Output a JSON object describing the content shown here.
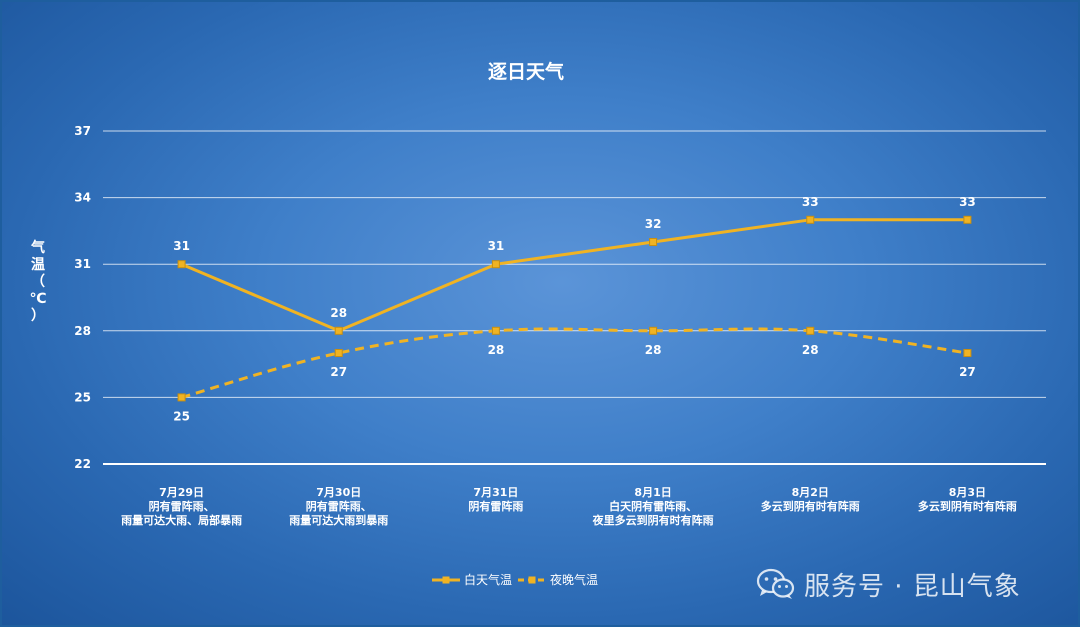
{
  "chart_data": {
    "type": "line",
    "title": "逐日天气",
    "ylabel": "气温（℃）",
    "xlabel": "",
    "ylim": [
      22,
      37
    ],
    "yticks": [
      22,
      25,
      28,
      31,
      34,
      37
    ],
    "grid": true,
    "legend_position": "bottom",
    "categories": [
      [
        "7月29日",
        "阴有雷阵雨、",
        "雨量可达大雨、局部暴雨"
      ],
      [
        "7月30日",
        "阴有雷阵雨、",
        "雨量可达大雨到暴雨"
      ],
      [
        "7月31日",
        "阴有雷阵雨"
      ],
      [
        "8月1日",
        "白天阴有雷阵雨、",
        "夜里多云到阴有时有阵雨"
      ],
      [
        "8月2日",
        "多云到阴有时有阵雨"
      ],
      [
        "8月3日",
        "多云到阴有时有阵雨"
      ]
    ],
    "series": [
      {
        "name": "白天气温",
        "values": [
          31,
          28,
          31,
          32,
          33,
          33
        ],
        "color": "#f0b323",
        "dashed": false
      },
      {
        "name": "夜晚气温",
        "values": [
          25,
          27,
          28,
          28,
          28,
          27
        ],
        "color": "#f0b323",
        "dashed": true
      }
    ]
  },
  "watermark": {
    "icon": "wechat-icon",
    "text": "服务号 · 昆山气象"
  }
}
